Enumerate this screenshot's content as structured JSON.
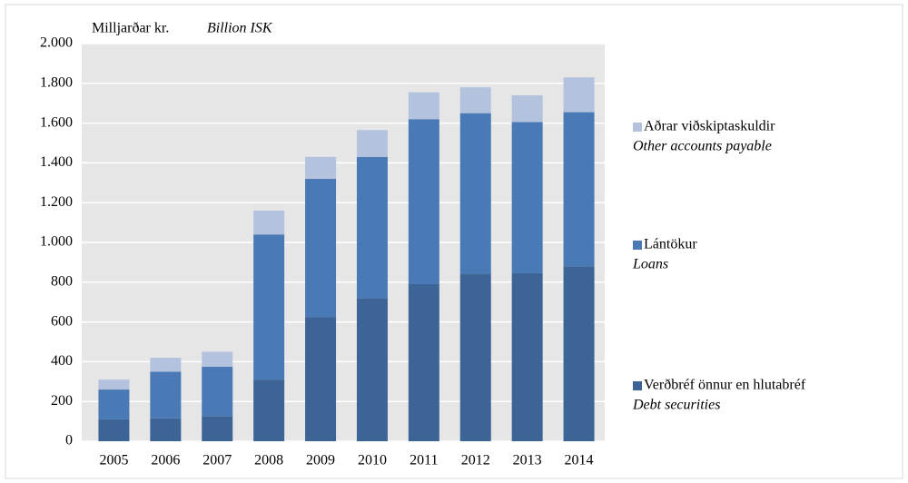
{
  "chart_data": {
    "type": "stacked_bar",
    "y_label": "Milljarðar kr.",
    "y_label_en": "Billion ISK",
    "categories": [
      "2005",
      "2006",
      "2007",
      "2008",
      "2009",
      "2010",
      "2011",
      "2012",
      "2013",
      "2014"
    ],
    "series": [
      {
        "name": "Verðbréf önnur en hlutabréf",
        "name_en": "Debt securities",
        "color": "#3d6496",
        "values": [
          110,
          115,
          125,
          310,
          625,
          720,
          790,
          840,
          845,
          880
        ]
      },
      {
        "name": "Lántökur",
        "name_en": "Loans",
        "color": "#4a7ab5",
        "values": [
          150,
          235,
          250,
          730,
          695,
          710,
          830,
          810,
          760,
          775
        ]
      },
      {
        "name": "Aðrar viðskiptaskuldir",
        "name_en": "Other accounts payable",
        "color": "#b4c3dd",
        "values": [
          50,
          70,
          75,
          120,
          110,
          135,
          135,
          130,
          135,
          175
        ]
      }
    ],
    "ylim": [
      0,
      2000
    ],
    "yticks": [
      0,
      200,
      400,
      600,
      800,
      {
        "value": 1000,
        "label": "1.000"
      },
      {
        "value": 1200,
        "label": "1.200"
      },
      {
        "value": 1400,
        "label": "1.400"
      },
      {
        "value": 1600,
        "label": "1.600"
      },
      {
        "value": 1800,
        "label": "1.800"
      },
      {
        "value": 2000,
        "label": "2.000"
      }
    ],
    "grid": true,
    "legend": "right"
  }
}
